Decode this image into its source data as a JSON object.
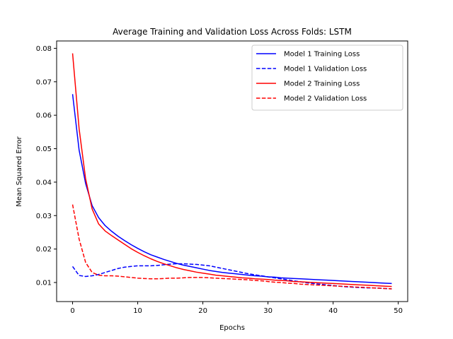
{
  "chart_data": {
    "type": "line",
    "title": "Average Training and Validation Loss Across Folds: LSTM",
    "xlabel": "Epochs",
    "ylabel": "Mean Squared Error",
    "xlim": [
      -2.45,
      51.45
    ],
    "ylim": [
      0.0043,
      0.0822
    ],
    "xticks": [
      0,
      10,
      20,
      30,
      40,
      50
    ],
    "yticks": [
      0.01,
      0.02,
      0.03,
      0.04,
      0.05,
      0.06,
      0.07,
      0.08
    ],
    "ytick_labels": [
      "0.01",
      "0.02",
      "0.03",
      "0.04",
      "0.05",
      "0.06",
      "0.07",
      "0.08"
    ],
    "xtick_labels": [
      "0",
      "10",
      "20",
      "30",
      "40",
      "50"
    ],
    "grid": false,
    "legend_position": "top-right",
    "x": [
      0,
      1,
      2,
      3,
      4,
      5,
      6,
      7,
      8,
      9,
      10,
      11,
      12,
      13,
      14,
      15,
      16,
      17,
      18,
      19,
      20,
      21,
      22,
      23,
      24,
      25,
      26,
      27,
      28,
      29,
      30,
      31,
      32,
      33,
      34,
      35,
      36,
      37,
      38,
      39,
      40,
      41,
      42,
      43,
      44,
      45,
      46,
      47,
      48,
      49
    ],
    "series": [
      {
        "name": "Model 1 Training Loss",
        "color": "#0000ff",
        "dash": "solid",
        "values": [
          0.0663,
          0.0496,
          0.0396,
          0.033,
          0.0294,
          0.027,
          0.0253,
          0.0238,
          0.0225,
          0.0213,
          0.0202,
          0.0192,
          0.0183,
          0.0176,
          0.0169,
          0.0163,
          0.0157,
          0.0152,
          0.0148,
          0.0144,
          0.014,
          0.0136,
          0.0133,
          0.013,
          0.0128,
          0.0126,
          0.0124,
          0.0122,
          0.012,
          0.0119,
          0.0117,
          0.0116,
          0.0114,
          0.0113,
          0.0112,
          0.0111,
          0.011,
          0.0109,
          0.0108,
          0.0107,
          0.0106,
          0.0105,
          0.0104,
          0.0103,
          0.0102,
          0.0101,
          0.01,
          0.0099,
          0.0098,
          0.0097
        ]
      },
      {
        "name": "Model 1 Validation Loss",
        "color": "#0000ff",
        "dash": "dashed",
        "values": [
          0.0148,
          0.0121,
          0.0118,
          0.012,
          0.0124,
          0.013,
          0.0136,
          0.0142,
          0.0146,
          0.0148,
          0.015,
          0.015,
          0.015,
          0.0151,
          0.0153,
          0.0155,
          0.0156,
          0.0156,
          0.0155,
          0.0154,
          0.0152,
          0.015,
          0.0146,
          0.0142,
          0.0138,
          0.0134,
          0.013,
          0.0126,
          0.0123,
          0.012,
          0.0117,
          0.0114,
          0.0111,
          0.0108,
          0.0105,
          0.0102,
          0.0099,
          0.0097,
          0.0095,
          0.0093,
          0.0091,
          0.0089,
          0.0087,
          0.0086,
          0.0085,
          0.0084,
          0.0084,
          0.0083,
          0.0082,
          0.0081
        ]
      },
      {
        "name": "Model 2 Training Loss",
        "color": "#ff0000",
        "dash": "solid",
        "values": [
          0.0785,
          0.056,
          0.041,
          0.032,
          0.0275,
          0.0254,
          0.024,
          0.0227,
          0.0214,
          0.0201,
          0.019,
          0.018,
          0.0171,
          0.0163,
          0.0156,
          0.015,
          0.0144,
          0.0139,
          0.0135,
          0.0131,
          0.0128,
          0.0125,
          0.0122,
          0.012,
          0.0118,
          0.0116,
          0.0114,
          0.0113,
          0.0111,
          0.011,
          0.0109,
          0.0107,
          0.0106,
          0.0105,
          0.0103,
          0.0102,
          0.0101,
          0.01,
          0.0099,
          0.0098,
          0.0097,
          0.0096,
          0.0095,
          0.0094,
          0.0093,
          0.0092,
          0.0091,
          0.009,
          0.0089,
          0.0088
        ]
      },
      {
        "name": "Model 2 Validation Loss",
        "color": "#ff0000",
        "dash": "dashed",
        "values": [
          0.0333,
          0.023,
          0.016,
          0.013,
          0.0122,
          0.012,
          0.012,
          0.0119,
          0.0117,
          0.0115,
          0.0113,
          0.0112,
          0.0111,
          0.0111,
          0.0112,
          0.0113,
          0.0113,
          0.0114,
          0.0115,
          0.0115,
          0.0115,
          0.0114,
          0.0113,
          0.0112,
          0.0111,
          0.011,
          0.0109,
          0.0108,
          0.0106,
          0.0105,
          0.0103,
          0.0101,
          0.01,
          0.0098,
          0.0097,
          0.0095,
          0.0094,
          0.0093,
          0.0092,
          0.0091,
          0.009,
          0.0089,
          0.0088,
          0.0087,
          0.0086,
          0.0085,
          0.0084,
          0.0083,
          0.0082,
          0.0081
        ]
      }
    ]
  }
}
